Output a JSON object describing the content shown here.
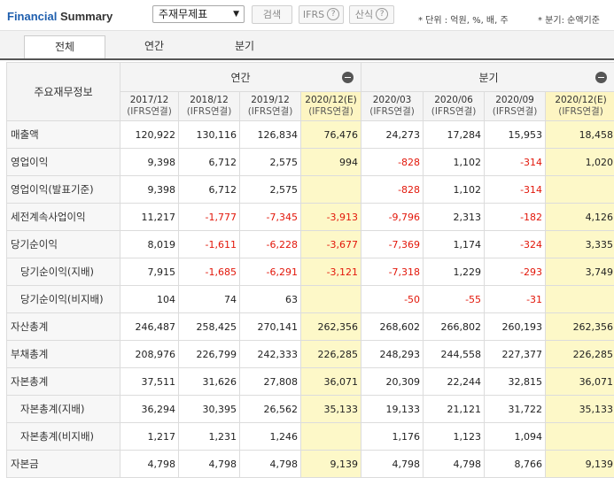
{
  "header": {
    "title_part1": "Financial",
    "title_part2": " Summary",
    "select_value": "주재무제표",
    "search_label": "검색",
    "ifrs_label": "IFRS",
    "calc_label": "산식",
    "unit_note": "* 단위 : 억원, %, 배, 주",
    "quarter_note": "* 분기: 순액기준",
    "help_glyph": "?"
  },
  "tabs": [
    {
      "label": "전체",
      "active": true
    },
    {
      "label": "연간",
      "active": false
    },
    {
      "label": "분기",
      "active": false
    }
  ],
  "table": {
    "row_header": "주요재무정보",
    "groups": {
      "annual": "연간",
      "quarter": "분기"
    },
    "columns": [
      {
        "date": "2017/12",
        "sub": "(IFRS연결)"
      },
      {
        "date": "2018/12",
        "sub": "(IFRS연결)"
      },
      {
        "date": "2019/12",
        "sub": "(IFRS연결)"
      },
      {
        "date": "2020/12(E)",
        "sub": "(IFRS연결)"
      },
      {
        "date": "2020/03",
        "sub": "(IFRS연결)"
      },
      {
        "date": "2020/06",
        "sub": "(IFRS연결)"
      },
      {
        "date": "2020/09",
        "sub": "(IFRS연결)"
      },
      {
        "date": "2020/12(E)",
        "sub": "(IFRS연결)"
      }
    ],
    "rows": [
      {
        "label": "매출액",
        "indent": false,
        "values": [
          "120,922",
          "130,116",
          "126,834",
          "76,476",
          "24,273",
          "17,284",
          "15,953",
          "18,458"
        ]
      },
      {
        "label": "영업이익",
        "indent": false,
        "values": [
          "9,398",
          "6,712",
          "2,575",
          "994",
          "-828",
          "1,102",
          "-314",
          "1,020"
        ]
      },
      {
        "label": "영업이익(발표기준)",
        "indent": false,
        "values": [
          "9,398",
          "6,712",
          "2,575",
          "",
          "-828",
          "1,102",
          "-314",
          ""
        ]
      },
      {
        "label": "세전계속사업이익",
        "indent": false,
        "values": [
          "11,217",
          "-1,777",
          "-7,345",
          "-3,913",
          "-9,796",
          "2,313",
          "-182",
          "4,126"
        ]
      },
      {
        "label": "당기순이익",
        "indent": false,
        "values": [
          "8,019",
          "-1,611",
          "-6,228",
          "-3,677",
          "-7,369",
          "1,174",
          "-324",
          "3,335"
        ]
      },
      {
        "label": "당기순이익(지배)",
        "indent": true,
        "values": [
          "7,915",
          "-1,685",
          "-6,291",
          "-3,121",
          "-7,318",
          "1,229",
          "-293",
          "3,749"
        ]
      },
      {
        "label": "당기순이익(비지배)",
        "indent": true,
        "values": [
          "104",
          "74",
          "63",
          "",
          "-50",
          "-55",
          "-31",
          ""
        ]
      },
      {
        "label": "자산총계",
        "indent": false,
        "values": [
          "246,487",
          "258,425",
          "270,141",
          "262,356",
          "268,602",
          "266,802",
          "260,193",
          "262,356"
        ]
      },
      {
        "label": "부채총계",
        "indent": false,
        "values": [
          "208,976",
          "226,799",
          "242,333",
          "226,285",
          "248,293",
          "244,558",
          "227,377",
          "226,285"
        ]
      },
      {
        "label": "자본총계",
        "indent": false,
        "values": [
          "37,511",
          "31,626",
          "27,808",
          "36,071",
          "20,309",
          "22,244",
          "32,815",
          "36,071"
        ]
      },
      {
        "label": "자본총계(지배)",
        "indent": true,
        "values": [
          "36,294",
          "30,395",
          "26,562",
          "35,133",
          "19,133",
          "21,121",
          "31,722",
          "35,133"
        ]
      },
      {
        "label": "자본총계(비지배)",
        "indent": true,
        "values": [
          "1,217",
          "1,231",
          "1,246",
          "",
          "1,176",
          "1,123",
          "1,094",
          ""
        ]
      },
      {
        "label": "자본금",
        "indent": false,
        "values": [
          "4,798",
          "4,798",
          "4,798",
          "9,139",
          "4,798",
          "4,798",
          "8,766",
          "9,139"
        ]
      }
    ]
  },
  "colors": {
    "highlight": "#fdf8c8",
    "negative": "#e2170a",
    "brand": "#1f5fae"
  }
}
